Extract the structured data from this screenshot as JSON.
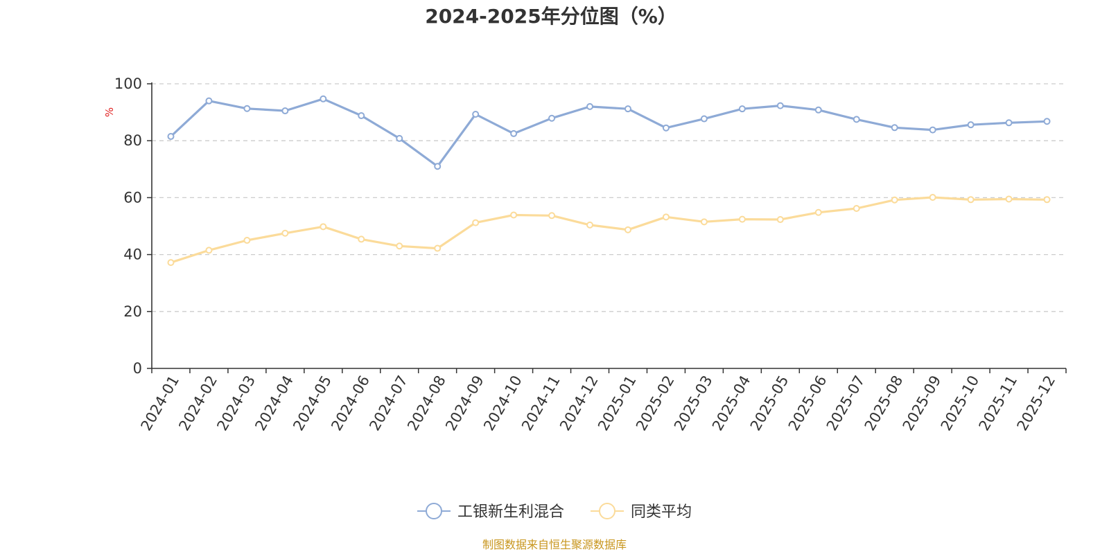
{
  "chart_data": {
    "type": "line",
    "title": "2024-2025年分位图（%）",
    "ylabel": "%",
    "ylim": [
      0,
      100
    ],
    "yticks": [
      0,
      20,
      40,
      60,
      80,
      100
    ],
    "grid": true,
    "legend_position": "bottom",
    "categories": [
      "2024-01",
      "2024-02",
      "2024-03",
      "2024-04",
      "2024-05",
      "2024-06",
      "2024-07",
      "2024-08",
      "2024-09",
      "2024-10",
      "2024-11",
      "2024-12",
      "2025-01",
      "2025-02",
      "2025-03",
      "2025-04",
      "2025-05",
      "2025-06",
      "2025-07",
      "2025-08",
      "2025-09",
      "2025-10",
      "2025-11",
      "2025-12"
    ],
    "series": [
      {
        "name": "工银新生利混合",
        "color": "#8eaad6",
        "values": [
          81.5,
          94,
          91.3,
          90.5,
          94.7,
          88.8,
          80.8,
          71,
          89.3,
          82.5,
          87.9,
          92,
          91.2,
          84.5,
          87.7,
          91.2,
          92.3,
          90.8,
          87.5,
          84.6,
          83.8,
          85.6,
          86.3,
          86.8
        ]
      },
      {
        "name": "同类平均",
        "color": "#fbdb9a",
        "values": [
          37.2,
          41.5,
          45,
          47.5,
          49.8,
          45.4,
          43,
          42.2,
          51.2,
          53.9,
          53.7,
          50.4,
          48.7,
          53.2,
          51.5,
          52.4,
          52.3,
          54.8,
          56.2,
          59.2,
          60.1,
          59.3,
          59.5,
          59.3
        ]
      }
    ],
    "source": "制图数据来自恒生聚源数据库"
  },
  "colors": {
    "axis": "#333333",
    "grid": "#cccccc",
    "ylabel": "#e02020",
    "source": "#c8961e"
  }
}
